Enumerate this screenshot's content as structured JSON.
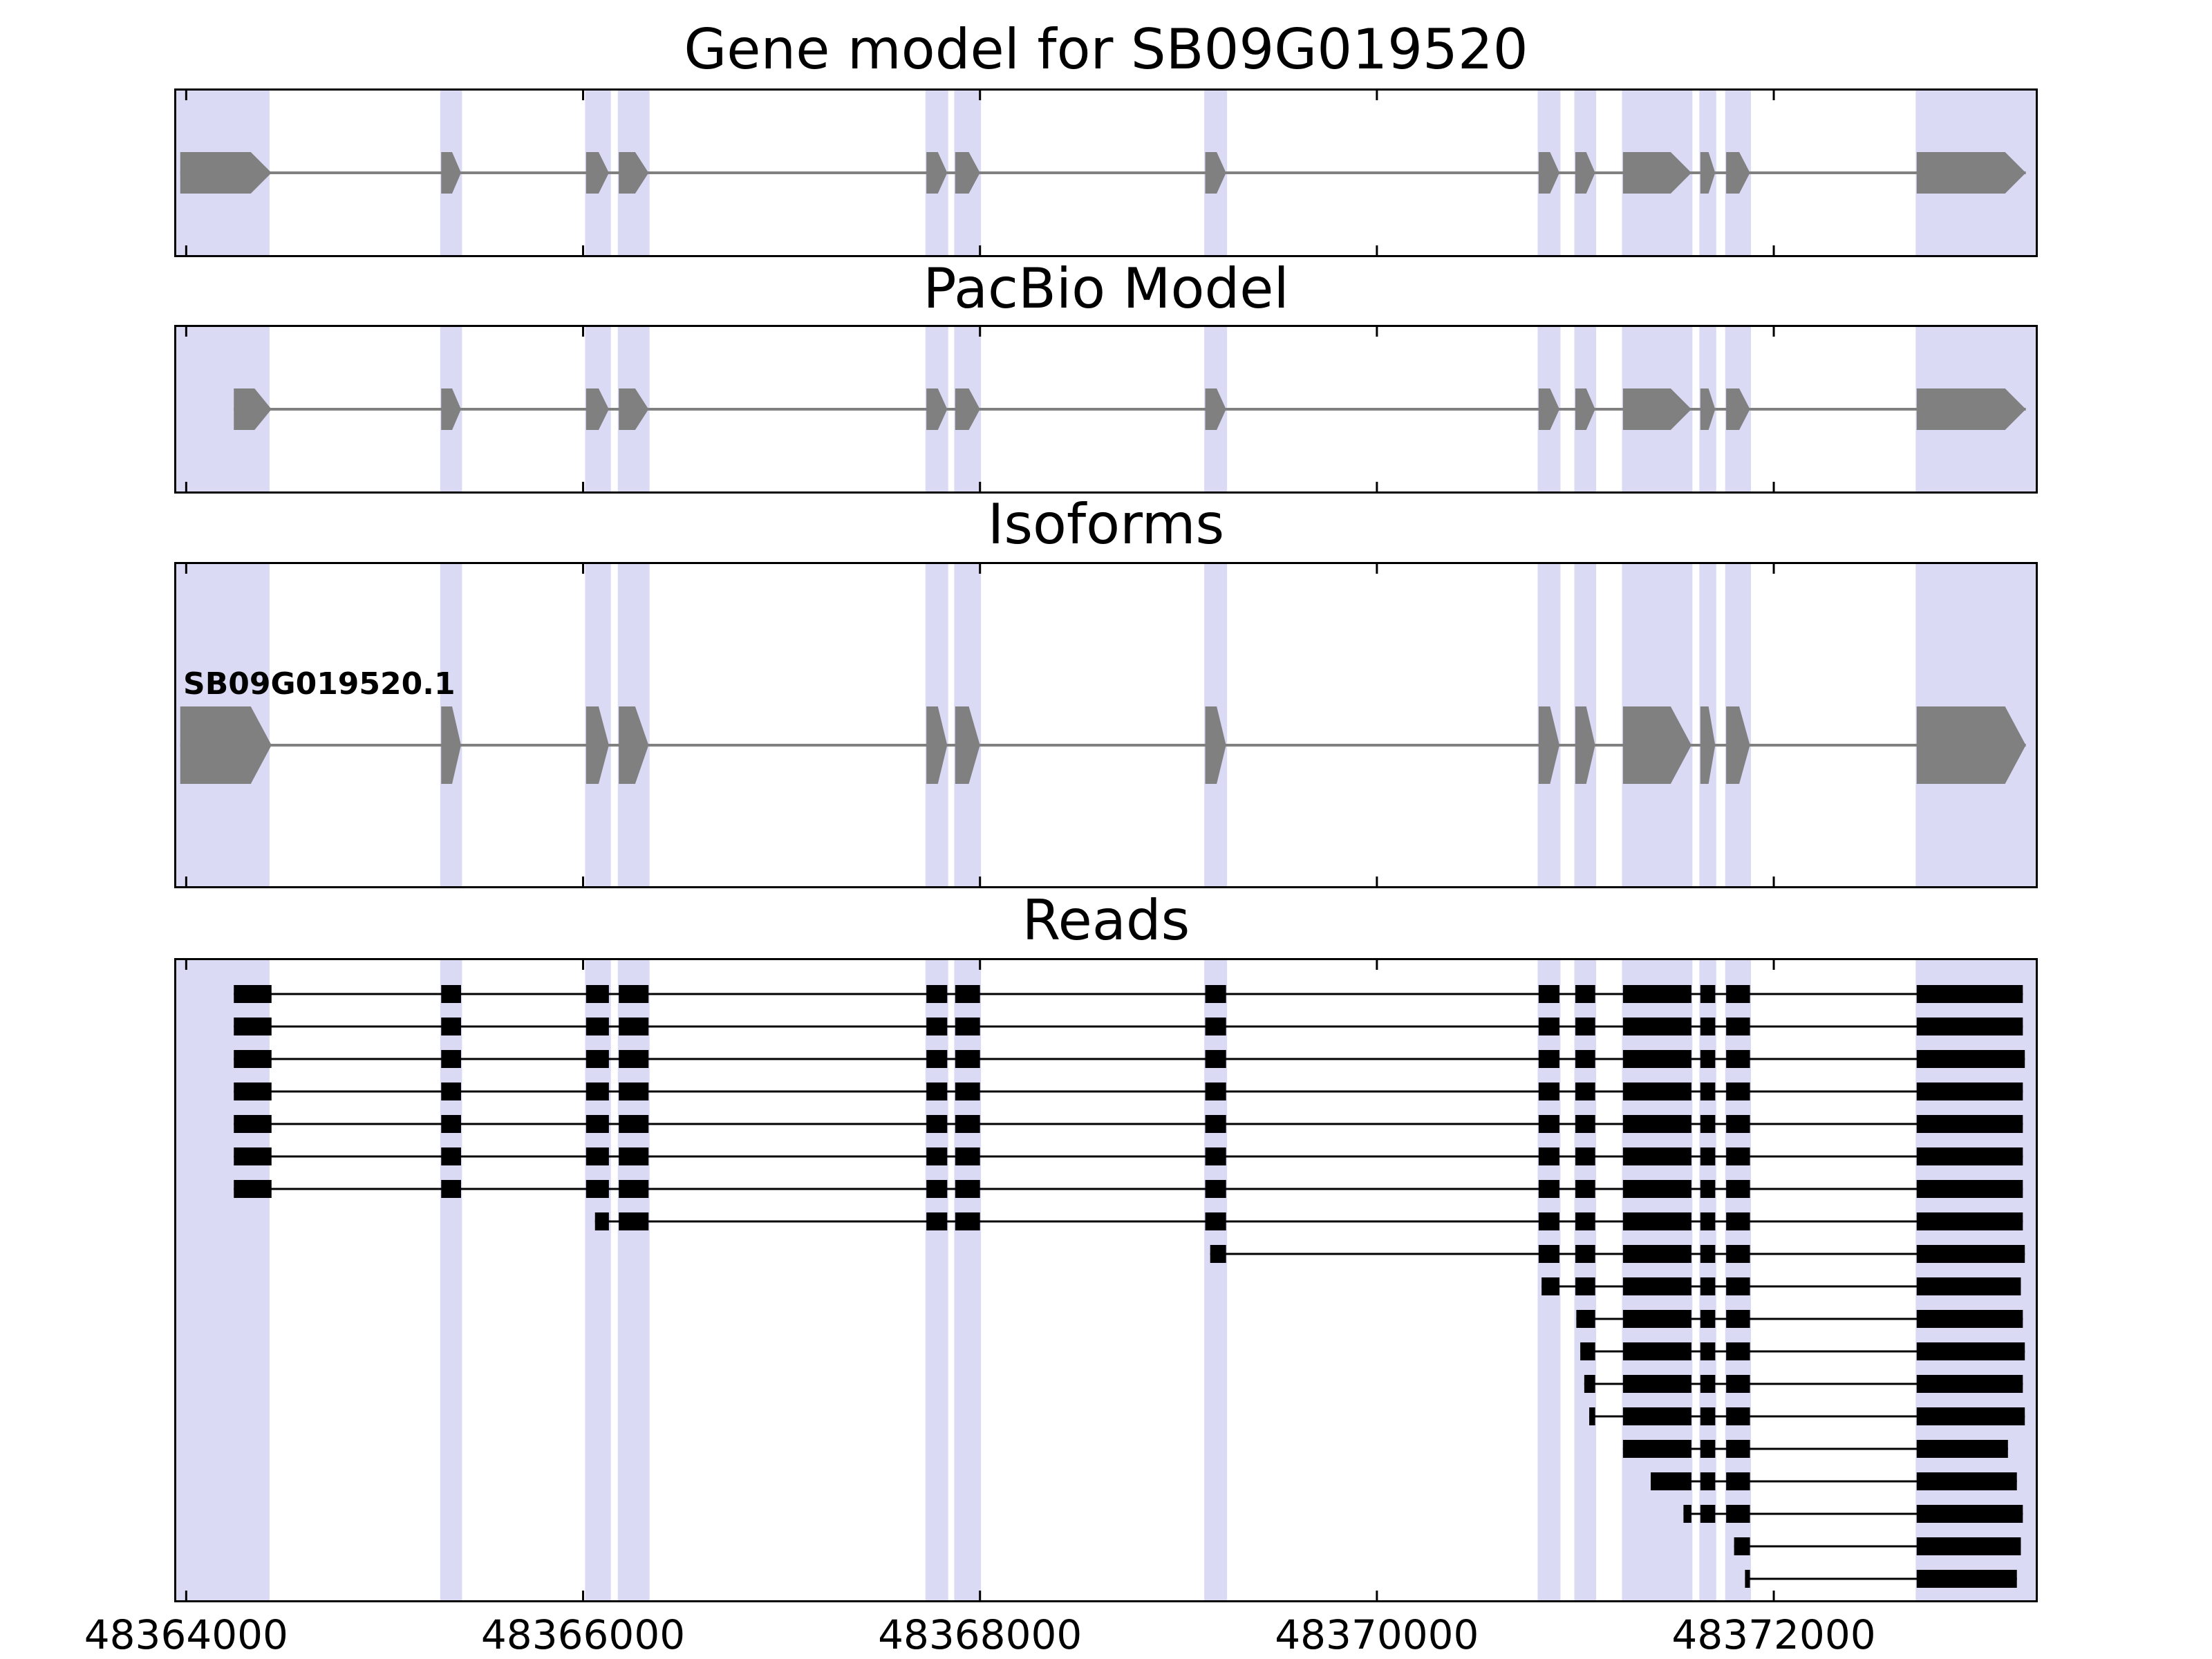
{
  "chart_data": {
    "type": "gene-model-tracks",
    "title": "Gene model for SB09G019520",
    "gene_id": "SB09G019520",
    "panels": [
      {
        "title": "Gene model for SB09G019520"
      },
      {
        "title": "PacBio Model"
      },
      {
        "title": "Isoforms"
      },
      {
        "title": "Reads"
      }
    ],
    "x_range": [
      48363950,
      48373320
    ],
    "x_ticks": [
      48364000,
      48366000,
      48368000,
      48370000,
      48372000
    ],
    "x_tick_labels": [
      "48364000",
      "48366000",
      "48368000",
      "48370000",
      "48372000"
    ],
    "colors": {
      "model": "#808080",
      "reads": "#000000",
      "highlight": "#dadaf5",
      "axis": "#000000",
      "background": "#ffffff"
    },
    "highlights": [
      [
        48363950,
        48364420
      ],
      [
        48365280,
        48365390
      ],
      [
        48366010,
        48366140
      ],
      [
        48366175,
        48366335
      ],
      [
        48367725,
        48367840
      ],
      [
        48367870,
        48368005
      ],
      [
        48369130,
        48369245
      ],
      [
        48370810,
        48370925
      ],
      [
        48370995,
        48371105
      ],
      [
        48371235,
        48371590
      ],
      [
        48371625,
        48371710
      ],
      [
        48371755,
        48371885
      ],
      [
        48372715,
        48373320
      ]
    ],
    "gene_model": {
      "name": "SB09G019520",
      "strand": "+",
      "exons": [
        [
          48363970,
          48364430
        ],
        [
          48365285,
          48365385
        ],
        [
          48366015,
          48366130
        ],
        [
          48366180,
          48366330
        ],
        [
          48367730,
          48367835
        ],
        [
          48367875,
          48368000
        ],
        [
          48369135,
          48369240
        ],
        [
          48370815,
          48370920
        ],
        [
          48371000,
          48371100
        ],
        [
          48371240,
          48371585
        ],
        [
          48371630,
          48371705
        ],
        [
          48371760,
          48371880
        ],
        [
          48372720,
          48373270
        ]
      ]
    },
    "pacbio_model": {
      "strand": "+",
      "exons": [
        [
          48364240,
          48364430
        ],
        [
          48365285,
          48365385
        ],
        [
          48366015,
          48366130
        ],
        [
          48366180,
          48366330
        ],
        [
          48367730,
          48367835
        ],
        [
          48367875,
          48368000
        ],
        [
          48369135,
          48369240
        ],
        [
          48370815,
          48370920
        ],
        [
          48371000,
          48371100
        ],
        [
          48371240,
          48371585
        ],
        [
          48371630,
          48371705
        ],
        [
          48371760,
          48371880
        ],
        [
          48372720,
          48373270
        ]
      ]
    },
    "isoforms": [
      {
        "name": "SB09G019520.1",
        "strand": "+",
        "exons": [
          [
            48363970,
            48364430
          ],
          [
            48365285,
            48365385
          ],
          [
            48366015,
            48366130
          ],
          [
            48366180,
            48366330
          ],
          [
            48367730,
            48367835
          ],
          [
            48367875,
            48368000
          ],
          [
            48369135,
            48369240
          ],
          [
            48370815,
            48370920
          ],
          [
            48371000,
            48371100
          ],
          [
            48371240,
            48371585
          ],
          [
            48371630,
            48371705
          ],
          [
            48371760,
            48371880
          ],
          [
            48372720,
            48373270
          ]
        ]
      }
    ],
    "reads": [
      {
        "start": 48364240,
        "end": 48373255
      },
      {
        "start": 48364240,
        "end": 48373255
      },
      {
        "start": 48364240,
        "end": 48373265
      },
      {
        "start": 48364240,
        "end": 48373255
      },
      {
        "start": 48364240,
        "end": 48373255
      },
      {
        "start": 48364240,
        "end": 48373255
      },
      {
        "start": 48364240,
        "end": 48373255
      },
      {
        "start": 48366060,
        "end": 48373255
      },
      {
        "start": 48369160,
        "end": 48373265
      },
      {
        "start": 48370830,
        "end": 48373245
      },
      {
        "start": 48371005,
        "end": 48373255
      },
      {
        "start": 48371025,
        "end": 48373265
      },
      {
        "start": 48371045,
        "end": 48373255
      },
      {
        "start": 48371070,
        "end": 48373265
      },
      {
        "start": 48371240,
        "end": 48373180
      },
      {
        "start": 48371380,
        "end": 48373225
      },
      {
        "start": 48371545,
        "end": 48373255
      },
      {
        "start": 48371800,
        "end": 48373245
      },
      {
        "start": 48371855,
        "end": 48373225
      }
    ]
  }
}
